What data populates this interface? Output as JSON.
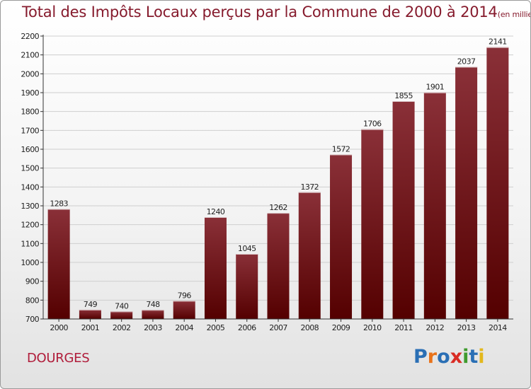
{
  "header": {
    "title": "Total des Impôts Locaux perçus par la Commune de 2000 à 2014",
    "unit_note": "(en milliers d'€)"
  },
  "footer": {
    "commune": "DOURGES",
    "brand": [
      "P",
      "r",
      "o",
      "x",
      "i",
      "t",
      "i"
    ],
    "brand_colors": [
      "#2a6fb5",
      "#e8731b",
      "#2a6fb5",
      "#d92c24",
      "#3f9b2e",
      "#2a6fb5",
      "#e3b81c"
    ]
  },
  "colors": {
    "bar_top": "#8a3038",
    "bar_bottom": "#540000",
    "title": "#861b2d",
    "grid": "#cfcfcf",
    "axis": "#333333"
  },
  "chart_data": {
    "type": "bar",
    "categories": [
      "2000",
      "2001",
      "2002",
      "2003",
      "2004",
      "2005",
      "2006",
      "2007",
      "2008",
      "2009",
      "2010",
      "2011",
      "2012",
      "2013",
      "2014"
    ],
    "values": [
      1283,
      749,
      740,
      748,
      796,
      1240,
      1045,
      1262,
      1372,
      1572,
      1706,
      1855,
      1901,
      2037,
      2141
    ],
    "value_labels": [
      "1283",
      "749",
      "740",
      "748",
      "796",
      "1240",
      "1045",
      "1262",
      "1372",
      "1572",
      "1706",
      "1855",
      "1901",
      "2037",
      "2141"
    ],
    "yticks": [
      700,
      800,
      900,
      1000,
      1100,
      1200,
      1300,
      1400,
      1500,
      1600,
      1700,
      1800,
      1900,
      2000,
      2100,
      2200
    ],
    "ylim": [
      700,
      2200
    ],
    "grid": true,
    "legend": "none"
  }
}
